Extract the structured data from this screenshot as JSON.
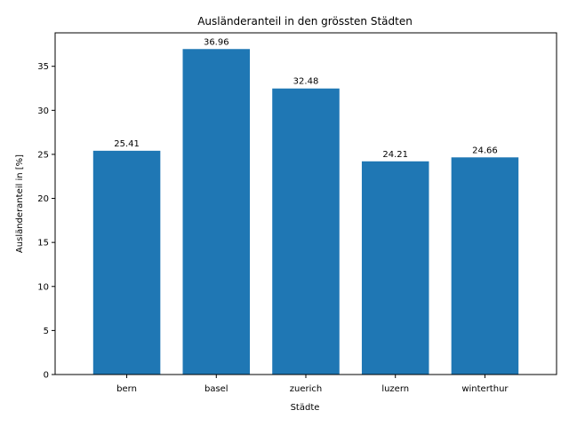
{
  "chart_data": {
    "type": "bar",
    "title": "Ausländeranteil in den grössten Städten",
    "xlabel": "Städte",
    "ylabel": "Ausländeranteil in [%]",
    "categories": [
      "bern",
      "basel",
      "zuerich",
      "luzern",
      "winterthur"
    ],
    "values": [
      25.41,
      36.96,
      32.48,
      24.21,
      24.66
    ],
    "data_labels": [
      "25.41",
      "36.96",
      "32.48",
      "24.21",
      "24.66"
    ],
    "ylim": [
      0,
      38.8
    ],
    "yticks": [
      0,
      5,
      10,
      15,
      20,
      25,
      30,
      35
    ],
    "grid": false,
    "bar_color": "#1f77b4"
  }
}
